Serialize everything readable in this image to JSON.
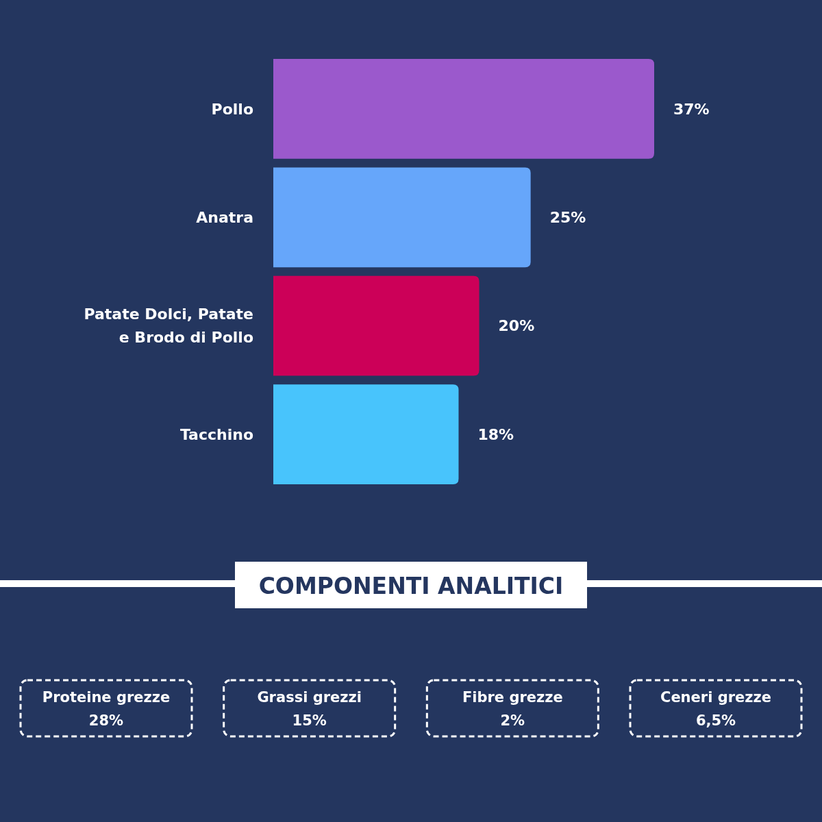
{
  "chart_data": [
    {
      "type": "bar",
      "orientation": "horizontal",
      "categories": [
        "Pollo",
        "Anatra",
        "Patate Dolci, Patate e Brodo di Pollo",
        "Tacchino"
      ],
      "values": [
        37,
        25,
        20,
        18
      ],
      "colors": [
        "#9b59cc",
        "#66a6fa",
        "#cc0058",
        "#48c4fc"
      ],
      "value_labels": [
        "37%",
        "25%",
        "20%",
        "18%"
      ]
    },
    {
      "type": "other",
      "title": "COMPONENTI ANALITICI",
      "categories": [
        "Proteine grezze",
        "Grassi grezzi",
        "Fibre grezze",
        "Ceneri grezze"
      ],
      "value_labels": [
        "28%",
        "15%",
        "2%",
        "6,5%"
      ]
    }
  ]
}
